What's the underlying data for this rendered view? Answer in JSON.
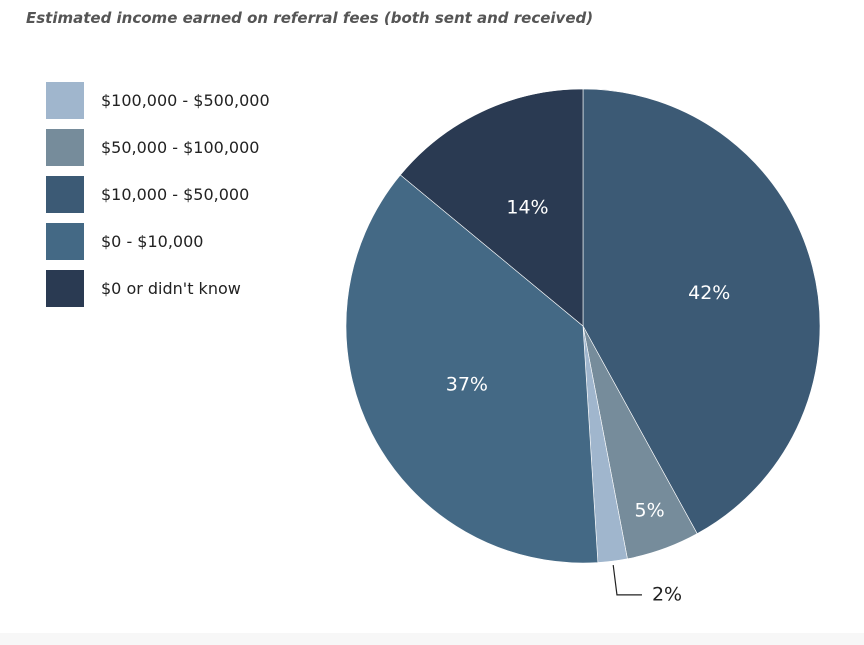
{
  "chart_data": {
    "type": "pie",
    "title": "Estimated income earned on referral fees (both sent and received)",
    "series": [
      {
        "name": "$100,000 - $500,000",
        "legend_label": "$100,000 - $500,000",
        "value": 2,
        "label": "2%",
        "color": "#a0b6cd"
      },
      {
        "name": "$50,000 - $100,000",
        "legend_label": "$50,000 - $100,000",
        "value": 5,
        "label": "5%",
        "color": "#768c9b"
      },
      {
        "name": "$10,000 - $50,000",
        "legend_label": "$10,000 - $50,000",
        "value": 42,
        "label": "42%",
        "color": "#3c5a75"
      },
      {
        "name": "$0 - $10,000",
        "legend_label": "$0 - $10,000",
        "value": 37,
        "label": "37%",
        "color": "#446985"
      },
      {
        "name": "$0 or didn't know",
        "legend_label": "$0 or didn't know",
        "value": 14,
        "label": "14%",
        "color": "#2a3a52"
      }
    ],
    "slice_order": [
      2,
      1,
      0,
      3,
      4
    ],
    "start_angle": "12 o'clock",
    "direction": "clockwise",
    "legend_position": "top-left",
    "external_label_slices": [
      0
    ]
  }
}
